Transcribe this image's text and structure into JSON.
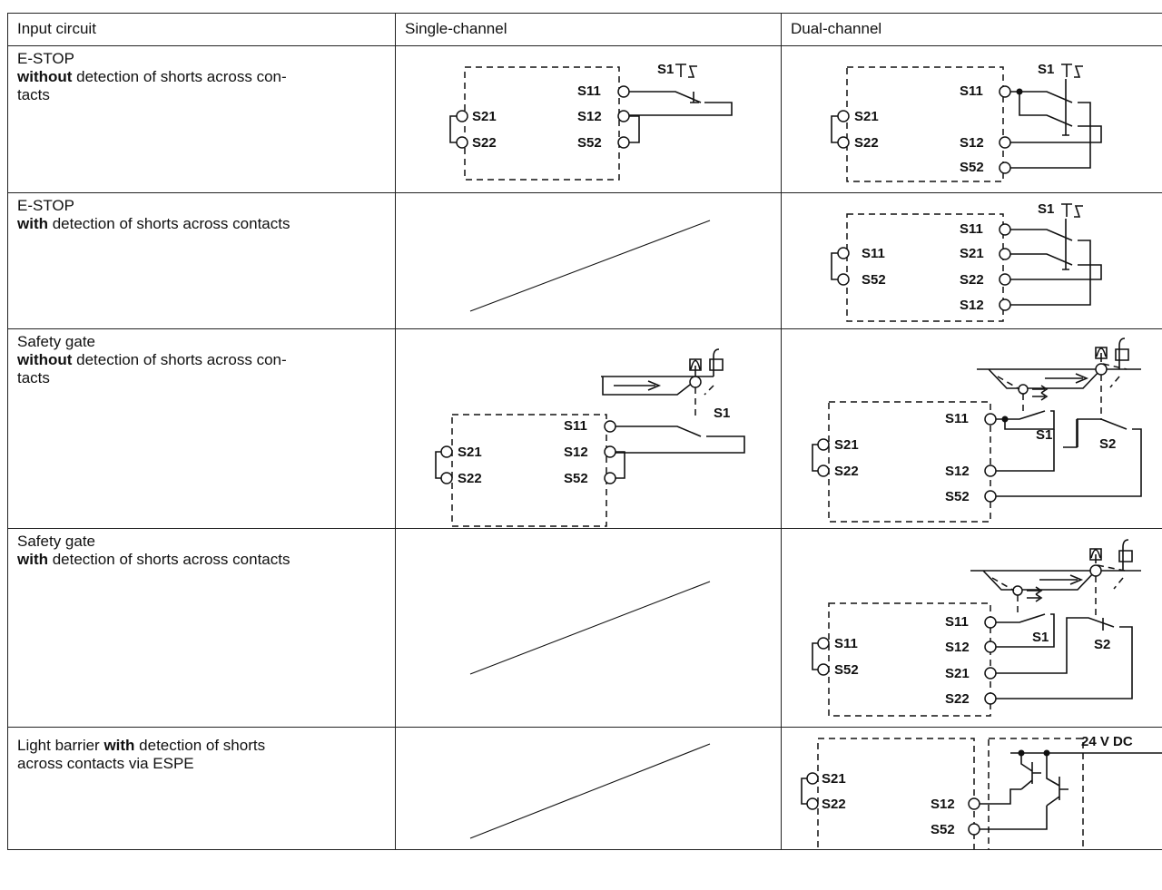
{
  "table": {
    "headers": [
      "Input circuit",
      "Single-channel",
      "Dual-channel"
    ],
    "rows": [
      {
        "title": "E-STOP",
        "bold": "without",
        "rest": " detection of shorts across con-",
        "line3": "tacts"
      },
      {
        "title": "E-STOP",
        "bold": "with",
        "rest": " detection of shorts across contacts",
        "line3": ""
      },
      {
        "title": "Safety gate",
        "bold": "without",
        "rest": " detection of shorts across con-",
        "line3": "tacts"
      },
      {
        "title": "Safety gate",
        "bold": "with",
        "rest": " detection of shorts across contacts",
        "line3": ""
      },
      {
        "title": "",
        "pre": "Light barrier ",
        "bold": "with",
        "rest": " detection of shorts",
        "line3": "across contacts via ESPE"
      }
    ]
  },
  "terminals": {
    "s1": "S1",
    "s2": "S2",
    "s11": "S11",
    "s12": "S12",
    "s21": "S21",
    "s22": "S22",
    "s52": "S52",
    "supply": "24 V DC"
  }
}
